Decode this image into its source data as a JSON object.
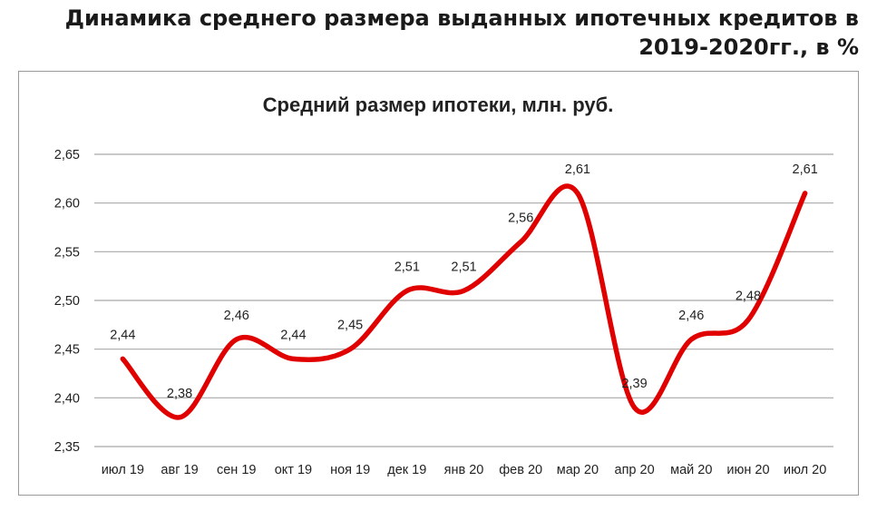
{
  "page": {
    "title": "Динамика среднего размера выданных ипотечных кредитов в 2019-2020гг., в %"
  },
  "chart_data": {
    "type": "line",
    "title": "Средний размер ипотеки,  млн. руб.",
    "xlabel": "",
    "ylabel": "",
    "categories": [
      "июл 19",
      "авг 19",
      "сен 19",
      "окт 19",
      "ноя 19",
      "дек 19",
      "янв 20",
      "фев 20",
      "мар 20",
      "апр 20",
      "май 20",
      "июн 20",
      "июл 20"
    ],
    "series": [
      {
        "values": [
          2.44,
          2.38,
          2.46,
          2.44,
          2.45,
          2.51,
          2.51,
          2.56,
          2.61,
          2.39,
          2.46,
          2.48,
          2.61
        ],
        "labels": [
          "2,44",
          "2,38",
          "2,46",
          "2,44",
          "2,45",
          "2,51",
          "2,51",
          "2,56",
          "2,61",
          "2,39",
          "2,46",
          "2,48",
          "2,61"
        ]
      }
    ],
    "yticks": [
      "2,35",
      "2,40",
      "2,45",
      "2,50",
      "2,55",
      "2,60",
      "2,65"
    ],
    "ylim": [
      2.35,
      2.65
    ],
    "grid": true,
    "legend": "none",
    "line_color": "#e00000"
  }
}
